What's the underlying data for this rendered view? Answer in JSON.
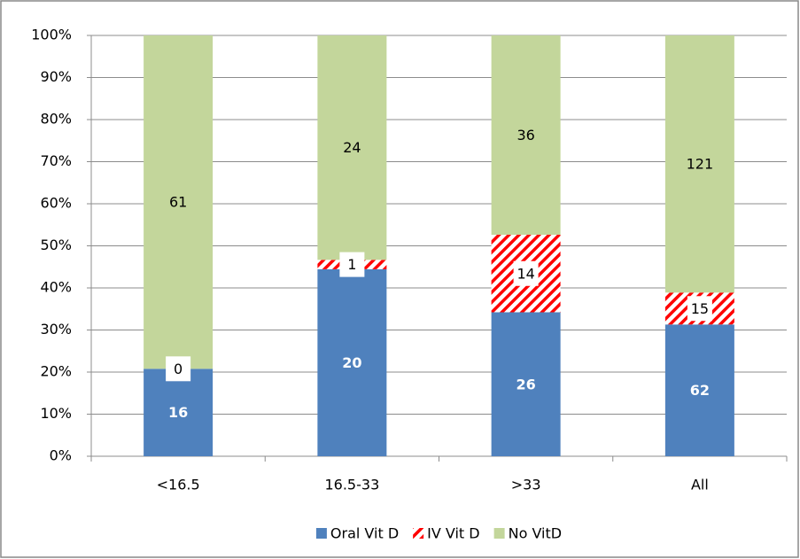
{
  "chart_data": {
    "type": "bar",
    "stacking": "percent",
    "categories": [
      "<16.5",
      "16.5-33",
      ">33",
      "All"
    ],
    "series": [
      {
        "name": "Oral Vit D",
        "color": "#4f81bd",
        "label_color": "#ffffff",
        "values": [
          16,
          20,
          26,
          62
        ]
      },
      {
        "name": "IV Vit D",
        "color": "#ff0000",
        "pattern": "hatch",
        "label_color": "#000000",
        "values": [
          0,
          1,
          14,
          15
        ]
      },
      {
        "name": "No VitD",
        "color": "#c3d69b",
        "label_color": "#000000",
        "values": [
          61,
          24,
          36,
          121
        ]
      }
    ],
    "ylim": [
      0,
      100
    ],
    "yticks": [
      {
        "value": 0,
        "label": "0%"
      },
      {
        "value": 10,
        "label": "10%"
      },
      {
        "value": 20,
        "label": "20%"
      },
      {
        "value": 30,
        "label": "30%"
      },
      {
        "value": 40,
        "label": "40%"
      },
      {
        "value": 50,
        "label": "50%"
      },
      {
        "value": 60,
        "label": "60%"
      },
      {
        "value": 70,
        "label": "70%"
      },
      {
        "value": 80,
        "label": "80%"
      },
      {
        "value": 90,
        "label": "90%"
      },
      {
        "value": 100,
        "label": "100%"
      }
    ],
    "grid": true,
    "legend": "bottom"
  }
}
